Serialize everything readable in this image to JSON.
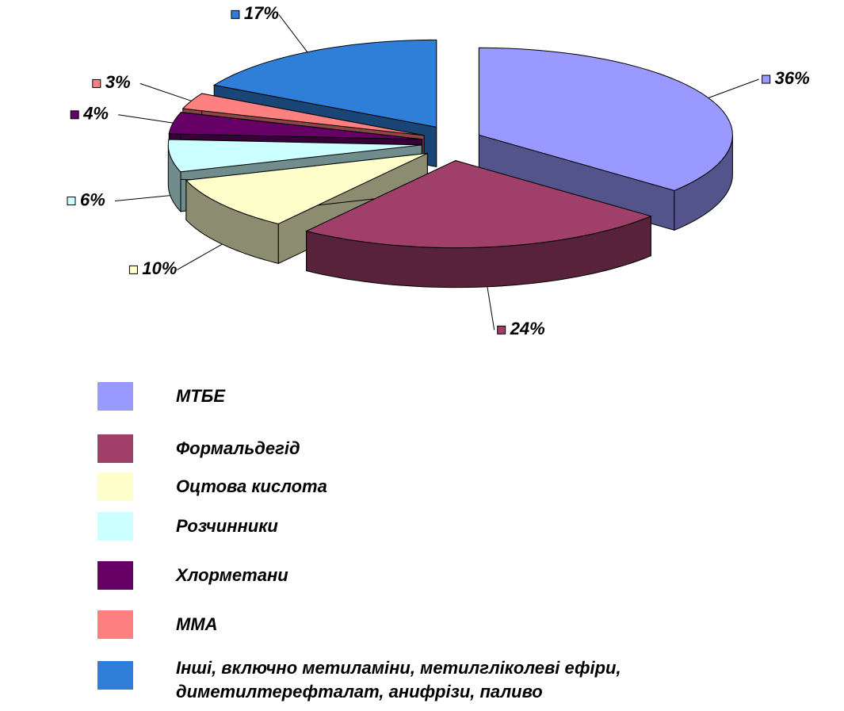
{
  "chart_data": {
    "type": "pie",
    "categories": [
      "МТБЕ",
      "Формальдегід",
      "Оцтова кислота",
      "Розчинники",
      "Хлорметани",
      "ММА",
      "Інші, включно метиламіни, метилгліколеві ефіри, диметилтерефталат, анифрізи, паливо"
    ],
    "values": [
      36,
      24,
      10,
      6,
      4,
      3,
      17
    ],
    "value_labels": [
      "36%",
      "24%",
      "10%",
      "6%",
      "4%",
      "3%",
      "17%"
    ],
    "colors": [
      "#9999ff",
      "#a0406a",
      "#ffffcc",
      "#ccffff",
      "#660066",
      "#ff8080",
      "#2f7fd8"
    ]
  }
}
